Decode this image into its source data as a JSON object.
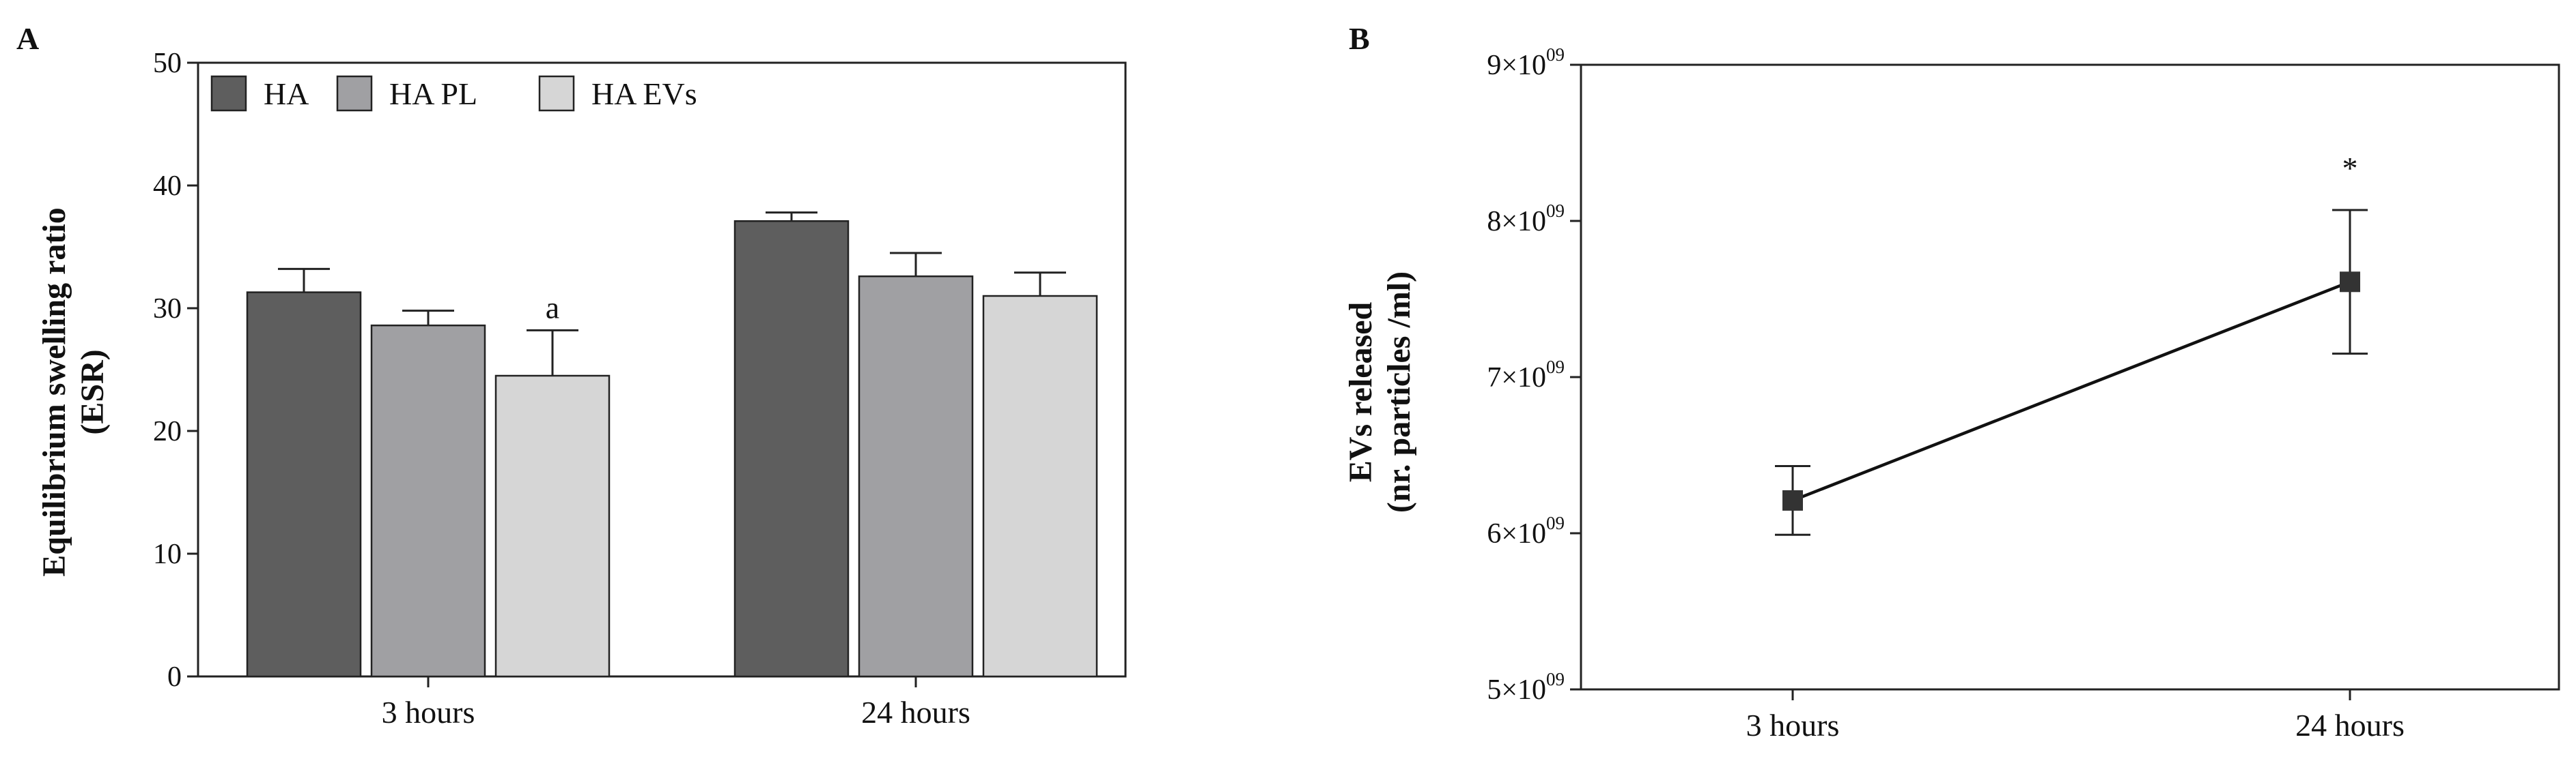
{
  "chart_data": [
    {
      "panel": "A",
      "type": "bar",
      "categories": [
        "3 hours",
        "24 hours"
      ],
      "ylabel_lines": [
        "Equilibrium swelling ratio",
        "(ESR)"
      ],
      "xlabel": "",
      "ylim": [
        0,
        50
      ],
      "yticks": [
        0,
        10,
        20,
        30,
        40,
        50
      ],
      "grid": false,
      "legend_position": "top-left",
      "series": [
        {
          "name": "HA",
          "color": "#5e5e5e",
          "values": [
            31.3,
            37.1
          ],
          "errors": [
            1.9,
            0.7
          ]
        },
        {
          "name": "HA PL",
          "color": "#a0a0a3",
          "values": [
            28.6,
            32.6
          ],
          "errors": [
            1.2,
            1.9
          ]
        },
        {
          "name": "HA EVs",
          "color": "#d6d6d6",
          "values": [
            24.5,
            31.0
          ],
          "errors": [
            3.7,
            1.9
          ]
        }
      ],
      "annotations": [
        {
          "text": "a",
          "series": 2,
          "category": 0
        }
      ]
    },
    {
      "panel": "B",
      "type": "line",
      "x": [
        "3 hours",
        "24 hours"
      ],
      "ylabel_lines": [
        "EVs released",
        "(nr. particles /ml)"
      ],
      "xlabel": "",
      "y_scale_note": "values in particles/ml",
      "ylim": [
        5000000000,
        9000000000
      ],
      "yticks": [
        {
          "value": 5000000000,
          "mantissa": "5",
          "exp": "09"
        },
        {
          "value": 6000000000,
          "mantissa": "6",
          "exp": "09"
        },
        {
          "value": 7000000000,
          "mantissa": "7",
          "exp": "09"
        },
        {
          "value": 8000000000,
          "mantissa": "8",
          "exp": "09"
        },
        {
          "value": 9000000000,
          "mantissa": "9",
          "exp": "09"
        }
      ],
      "grid": false,
      "series": [
        {
          "color": "#333333",
          "values": [
            6210000000,
            7610000000
          ],
          "errors": [
            220000000,
            460000000
          ]
        }
      ],
      "annotations": [
        {
          "text": "*",
          "index": 1
        }
      ]
    }
  ]
}
